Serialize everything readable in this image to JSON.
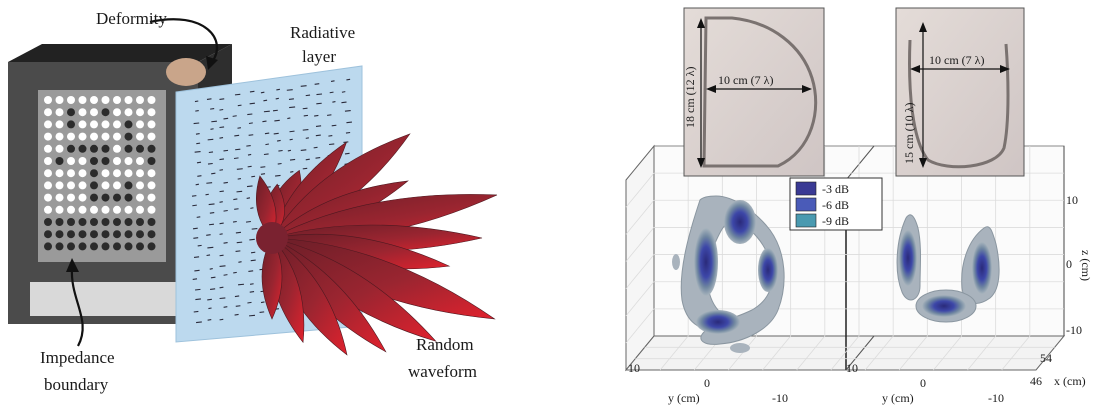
{
  "left_panel": {
    "labels": {
      "deformity": "Deformity",
      "radiative_line1": "Radiative",
      "radiative_line2": "layer",
      "impedance_line1": "Impedance",
      "impedance_line2": "boundary",
      "random_line1": "Random",
      "random_line2": "waveform"
    },
    "grid": {
      "rows": 13,
      "cols": 10,
      "pattern": [
        "1111111111",
        "1101101111",
        "1101111011",
        "1111111011",
        "1100001000",
        "1011001110",
        "1111011111",
        "1111011011",
        "1111000011",
        "1111111111",
        "0000000000",
        "0000000000",
        "0000000000"
      ]
    },
    "colors": {
      "housing": "#4a4a4a",
      "housing_top": "#2a2a2a",
      "panel": "#d9d9d9",
      "dot_light": "#ffffff",
      "dot_dark": "#2b2b2b",
      "radiative_sheet": "#bcd9ee",
      "lobe_dark": "#5a1a22",
      "lobe_bright": "#d8202c",
      "deformity": "#c9a58a"
    }
  },
  "right_panel": {
    "photo_left": {
      "height_label": "18 cm (12 λ)",
      "width_label": "10 cm (7 λ)"
    },
    "photo_right": {
      "height_label": "15 cm (10 λ)",
      "width_label": "10 cm (7 λ)"
    },
    "legend": [
      {
        "label": "-3 dB",
        "color": "#3a3a94"
      },
      {
        "label": "-6 dB",
        "color": "#4a5bb8"
      },
      {
        "label": "-9 dB",
        "color": "#4a9ab0"
      }
    ],
    "axes": {
      "y_label": "y (cm)",
      "y_ticks_left": [
        "10",
        "0",
        "-10"
      ],
      "y_ticks_right": [
        "10",
        "0",
        "-10"
      ],
      "x_label": "x (cm)",
      "x_ticks": [
        "54",
        "46"
      ],
      "z_label": "z (cm)",
      "z_ticks": [
        "10",
        "0",
        "-10"
      ]
    }
  }
}
